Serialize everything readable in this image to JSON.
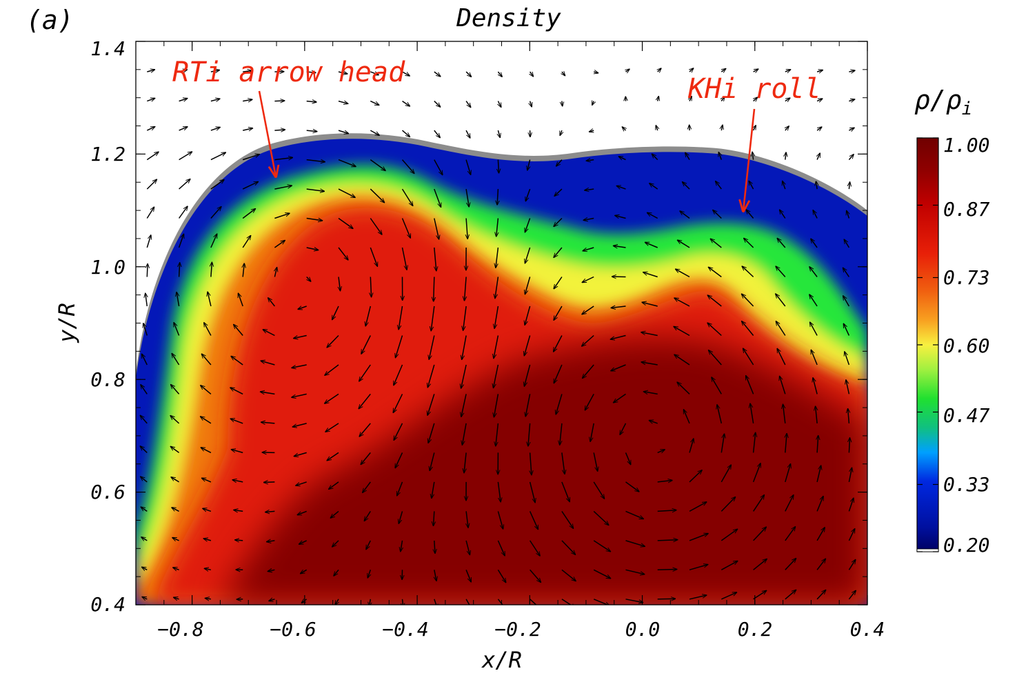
{
  "panel_label": "(a)",
  "annotations": [
    {
      "text": "RTi arrow head",
      "arrow_to": {
        "x": -0.655,
        "y": 1.16
      }
    },
    {
      "text": "KHi roll",
      "arrow_to": {
        "x": 0.175,
        "y": 1.1
      }
    }
  ],
  "colors": {
    "blue": "#0418b8",
    "green": "#26e63a",
    "yellow": "#f2f23a",
    "orange": "#f07a10",
    "red": "#e01a08",
    "darkred": "#800000",
    "boundary": "#8c8c8c",
    "annotation": "#ee2a10"
  },
  "chart_data": {
    "type": "heatmap",
    "title": "Density",
    "xlabel": "x/R",
    "ylabel": "y/R",
    "xlim": [
      -0.9,
      0.4
    ],
    "ylim": [
      0.4,
      1.4
    ],
    "xticks": [
      "−0.8",
      "−0.6",
      "−0.4",
      "−0.2",
      "0.0",
      "0.2",
      "0.4"
    ],
    "xtick_values": [
      -0.8,
      -0.6,
      -0.4,
      -0.2,
      0.0,
      0.2,
      0.4
    ],
    "yticks": [
      "0.4",
      "0.6",
      "0.8",
      "1.0",
      "1.2",
      "1.4"
    ],
    "ytick_values": [
      0.4,
      0.6,
      0.8,
      1.0,
      1.2,
      1.4
    ],
    "colorbar": {
      "label": "ρ/ρ",
      "label_sub": "i",
      "ticks": [
        "1.00",
        "0.87",
        "0.73",
        "0.60",
        "0.47",
        "0.33",
        "0.20"
      ],
      "tick_values": [
        1.0,
        0.87,
        0.73,
        0.6,
        0.47,
        0.33,
        0.2
      ],
      "range": [
        0.2,
        1.0
      ]
    },
    "overlay": "velocity vector field (quiver)"
  }
}
